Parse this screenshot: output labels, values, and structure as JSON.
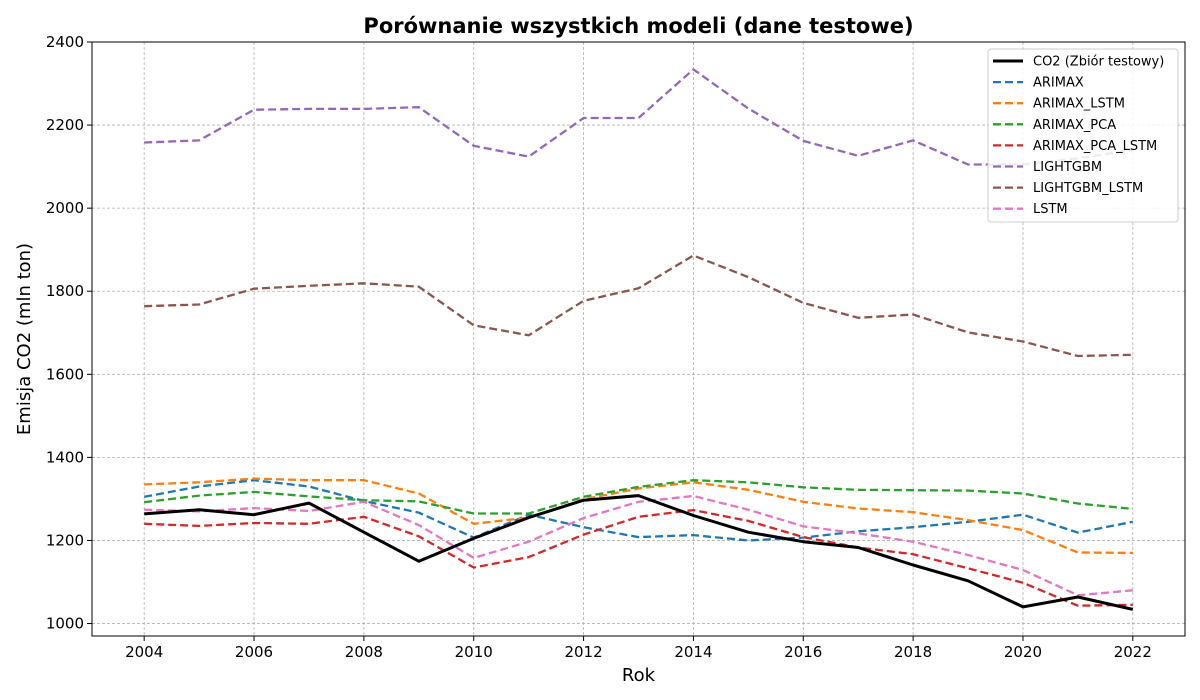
{
  "chart_data": {
    "type": "line",
    "title": "Porównanie wszystkich modeli (dane testowe)",
    "xlabel": "Rok",
    "ylabel": "Emisja CO2 (mln ton)",
    "xlim": [
      2003.05,
      2022.95
    ],
    "ylim": [
      970,
      2400
    ],
    "xticks": [
      2004,
      2006,
      2008,
      2010,
      2012,
      2014,
      2016,
      2018,
      2020,
      2022
    ],
    "yticks": [
      1000,
      1200,
      1400,
      1600,
      1800,
      2000,
      2200,
      2400
    ],
    "grid": true,
    "legend_position": "top-right",
    "x": [
      2004,
      2005,
      2006,
      2007,
      2008,
      2009,
      2010,
      2011,
      2012,
      2013,
      2014,
      2015,
      2016,
      2017,
      2018,
      2019,
      2020,
      2021,
      2022
    ],
    "series": [
      {
        "name": "CO2 (Zbiór testowy)",
        "color": "#000000",
        "style": "solid",
        "values": [
          1264,
          1274,
          1262,
          1290,
          1220,
          1150,
          1205,
          1255,
          1297,
          1308,
          1260,
          1220,
          1197,
          1183,
          1141,
          1103,
          1040,
          1064,
          1034
        ]
      },
      {
        "name": "ARIMAX",
        "color": "#1f77b4",
        "style": "dashed",
        "values": [
          1305,
          1330,
          1345,
          1330,
          1295,
          1267,
          1207,
          1262,
          1232,
          1208,
          1213,
          1200,
          1207,
          1222,
          1232,
          1245,
          1262,
          1219,
          1245
        ]
      },
      {
        "name": "ARIMAX_LSTM",
        "color": "#ff7f0e",
        "style": "dashed",
        "values": [
          1335,
          1340,
          1349,
          1345,
          1345,
          1313,
          1240,
          1255,
          1299,
          1325,
          1340,
          1322,
          1293,
          1277,
          1268,
          1249,
          1225,
          1171,
          1170
        ]
      },
      {
        "name": "ARIMAX_PCA",
        "color": "#2ca02c",
        "style": "dashed",
        "values": [
          1292,
          1308,
          1317,
          1306,
          1297,
          1294,
          1265,
          1265,
          1305,
          1329,
          1345,
          1340,
          1328,
          1322,
          1321,
          1320,
          1313,
          1289,
          1276
        ]
      },
      {
        "name": "ARIMAX_PCA_LSTM",
        "color": "#d62728",
        "style": "dashed",
        "values": [
          1240,
          1235,
          1242,
          1240,
          1257,
          1210,
          1135,
          1160,
          1214,
          1257,
          1273,
          1247,
          1208,
          1183,
          1167,
          1133,
          1098,
          1043,
          1045
        ]
      },
      {
        "name": "LIGHTGBM",
        "color": "#9467bd",
        "style": "dashed",
        "values": [
          2158,
          2163,
          2237,
          2239,
          2239,
          2243,
          2150,
          2124,
          2217,
          2217,
          2334,
          2240,
          2162,
          2126,
          2163,
          2105,
          2105,
          2120,
          2140
        ]
      },
      {
        "name": "LIGHTGBM_LSTM",
        "color": "#8c564b",
        "style": "dashed",
        "values": [
          1764,
          1768,
          1806,
          1813,
          1819,
          1811,
          1718,
          1694,
          1777,
          1807,
          1886,
          1834,
          1772,
          1736,
          1744,
          1701,
          1679,
          1644,
          1647
        ]
      },
      {
        "name": "LSTM",
        "color": "#e377c2",
        "style": "dashed",
        "values": [
          1274,
          1270,
          1278,
          1271,
          1293,
          1237,
          1158,
          1197,
          1254,
          1293,
          1307,
          1274,
          1234,
          1217,
          1197,
          1165,
          1129,
          1068,
          1080
        ]
      }
    ]
  }
}
